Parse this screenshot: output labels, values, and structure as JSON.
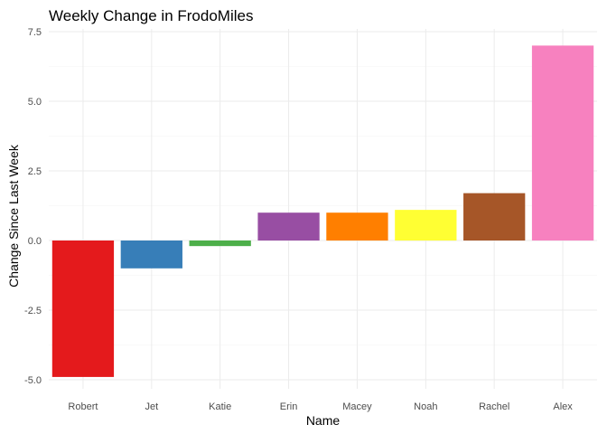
{
  "chart_data": {
    "type": "bar",
    "title": "Weekly Change in FrodoMiles",
    "xlabel": "Name",
    "ylabel": "Change Since Last Week",
    "categories": [
      "Robert",
      "Jet",
      "Katie",
      "Erin",
      "Macey",
      "Noah",
      "Rachel",
      "Alex"
    ],
    "values": [
      -4.9,
      -1.0,
      -0.2,
      1.0,
      1.0,
      1.1,
      1.7,
      7.0
    ],
    "colors": [
      "#E41A1C",
      "#377EB8",
      "#4DAF4A",
      "#984EA3",
      "#FF7F00",
      "#FFFF33",
      "#A65628",
      "#F781BF"
    ],
    "ylim": [
      -5.2,
      7.5
    ],
    "yticks": [
      -5.0,
      -2.5,
      0.0,
      2.5,
      5.0,
      7.5
    ],
    "ytick_labels": [
      "-5.0",
      "-2.5",
      "0.0",
      "2.5",
      "5.0",
      "7.5"
    ],
    "grid": true,
    "legend": "none"
  }
}
